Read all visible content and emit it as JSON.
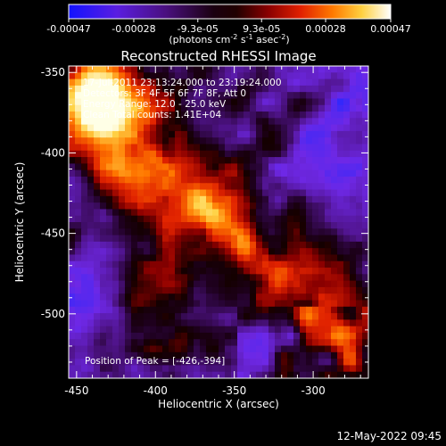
{
  "colorbar": {
    "tick_labels": [
      "-0.00047",
      "-0.00028",
      "-9.3e-05",
      "9.3e-05",
      "0.00028",
      "0.00047"
    ],
    "units_main": "(photons cm",
    "units_sup1": "-2",
    "units_mid1": " s",
    "units_sup2": "-1",
    "units_mid2": " asec",
    "units_sup3": "-2",
    "units_close": ")",
    "min_value": -0.00047,
    "max_value": 0.00047,
    "colors": [
      "#1a1aff",
      "#5a20d0",
      "#3a0a50",
      "#000000",
      "#5a0000",
      "#c01000",
      "#ff5a00",
      "#ffb030",
      "#ffff90",
      "#ffffff"
    ]
  },
  "plot": {
    "title": "Reconstructed RHESSI Image",
    "xlabel": "Heliocentric X (arcsec)",
    "ylabel": "Heliocentric Y (arcsec)",
    "x_ticks": [
      "-450",
      "-400",
      "-350",
      "-300"
    ],
    "y_ticks": [
      "-350",
      "-400",
      "-450",
      "-500"
    ]
  },
  "annotations": {
    "time_range": "17-Jul-2011 23:13:24.000 to 23:19:24.000",
    "detectors": "Detectors: 3F 4F 5F 6F 7F 8F, Att 0",
    "energy_range": "Energy Range: 12.0 - 25.0 keV",
    "clean_counts": "Clean   Total counts: 1.41E+04",
    "peak_position": "Position of Peak = [-426,-394]"
  },
  "footer": {
    "timestamp": "12-May-2022 09:45"
  },
  "chart_data": {
    "type": "heatmap",
    "title": "Reconstructed RHESSI Image",
    "xlabel": "Heliocentric X (arcsec)",
    "ylabel": "Heliocentric Y (arcsec)",
    "xlim": [
      -455,
      -265
    ],
    "ylim": [
      -540,
      -346
    ],
    "x_ticks": [
      -450,
      -400,
      -350,
      -300
    ],
    "y_ticks": [
      -350,
      -400,
      -450,
      -500
    ],
    "colorbar_range": [
      -0.00047,
      0.00047
    ],
    "peak_position": [
      -426,
      -394
    ]
  }
}
